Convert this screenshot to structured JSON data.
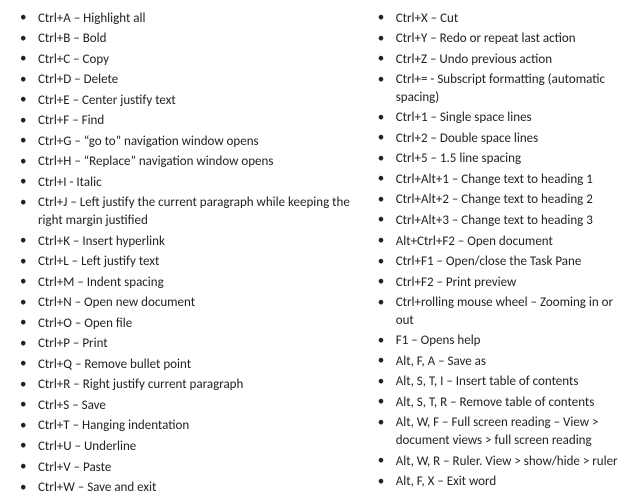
{
  "columns": {
    "left": [
      "Ctrl+A – Highlight all",
      "Ctrl+B – Bold",
      "Ctrl+C – Copy",
      "Ctrl+D – Delete",
      "Ctrl+E – Center justify text",
      "Ctrl+F – Find",
      "Ctrl+G – “go to” navigation window opens",
      "Ctrl+H – “Replace” navigation window opens",
      "Ctrl+I - Italic",
      "Ctrl+J – Left justify the current paragraph while keeping the right margin justified",
      "Ctrl+K – Insert hyperlink",
      "Ctrl+L – Left justify text",
      "Ctrl+M – Indent spacing",
      "Ctrl+N – Open new document",
      "Ctrl+O – Open file",
      "Ctrl+P – Print",
      "Ctrl+Q – Remove bullet point",
      "Ctrl+R – Right justify current paragraph",
      "Ctrl+S – Save",
      "Ctrl+T – Hanging indentation",
      "Ctrl+U – Underline",
      "Ctrl+V – Paste",
      "Ctrl+W – Save and exit"
    ],
    "right": [
      "Ctrl+X – Cut",
      "Ctrl+Y – Redo or repeat last action",
      "Ctrl+Z – Undo previous action",
      "Ctrl+= - Subscript formatting (automatic spacing)",
      "Ctrl+1 – Single space lines",
      "Ctrl+2 – Double space lines",
      "Ctrl+5 – 1.5 line spacing",
      "Ctrl+Alt+1 – Change text to heading 1",
      "Ctrl+Alt+2 – Change text to heading 2",
      "Ctrl+Alt+3 – Change text to heading 3",
      "Alt+Ctrl+F2 – Open document",
      "Ctrl+F1 – Open/close the Task Pane",
      "Ctrl+F2 – Print preview",
      "Ctrl+rolling mouse wheel – Zooming in or out",
      "F1 – Opens help",
      "Alt, F, A – Save as",
      "Alt, S, T, I – Insert table of contents",
      "Alt, S, T, R – Remove table of contents",
      "Alt, W, F – Full screen reading – View > document views > full screen reading",
      "Alt, W, R – Ruler. View > show/hide > ruler",
      "Alt, F, X – Exit word"
    ]
  }
}
